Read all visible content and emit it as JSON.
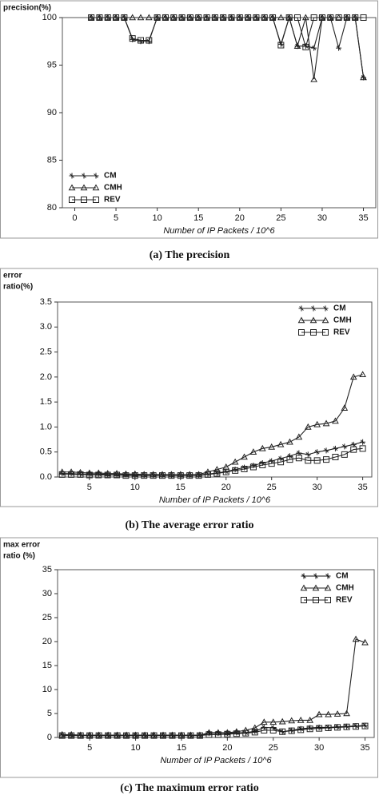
{
  "chart_data": [
    {
      "type": "line",
      "caption": "(a) The precision",
      "ylabel": [
        "precision(%)"
      ],
      "xlabel": "Number of IP Packets / 10^6",
      "x": [
        2,
        3,
        4,
        5,
        6,
        7,
        8,
        9,
        10,
        11,
        12,
        13,
        14,
        15,
        16,
        17,
        18,
        19,
        20,
        21,
        22,
        23,
        24,
        25,
        26,
        27,
        28,
        29,
        30,
        31,
        32,
        33,
        34,
        35
      ],
      "series": [
        {
          "name": "CM",
          "color": "#222",
          "values": [
            100,
            100,
            100,
            100,
            100,
            97.7,
            97.5,
            97.5,
            100,
            100,
            100,
            100,
            100,
            100,
            100,
            100,
            100,
            100,
            100,
            100,
            100,
            100,
            100,
            97.2,
            100,
            97,
            97,
            96.8,
            100,
            100,
            96.8,
            100,
            100,
            93.7
          ]
        },
        {
          "name": "CMH",
          "color": "#222",
          "values": [
            100,
            100,
            100,
            100,
            100,
            100,
            100,
            100,
            100,
            100,
            100,
            100,
            100,
            100,
            100,
            100,
            100,
            100,
            100,
            100,
            100,
            100,
            100,
            100,
            100,
            97,
            100,
            93.5,
            100,
            100,
            100,
            100,
            100,
            93.7
          ]
        },
        {
          "name": "REV",
          "color": "#222",
          "values": [
            100,
            100,
            100,
            100,
            100,
            97.8,
            97.6,
            97.6,
            100,
            100,
            100,
            100,
            100,
            100,
            100,
            100,
            100,
            100,
            100,
            100,
            100,
            100,
            100,
            97.1,
            100,
            100,
            96.9,
            100,
            100,
            100,
            100,
            100,
            100,
            100
          ]
        }
      ],
      "xlim": [
        -1.5,
        36.5
      ],
      "xticks": [
        0,
        5,
        10,
        15,
        20,
        25,
        30,
        35
      ],
      "ylim": [
        80,
        100
      ],
      "yticks": [
        80,
        85,
        90,
        95,
        100
      ],
      "legend": "lower left"
    },
    {
      "type": "line",
      "caption": "(b) The average error ratio",
      "ylabel": [
        "error",
        "ratio(%)"
      ],
      "xlabel": "Number of IP Packets / 10^6",
      "x": [
        2,
        3,
        4,
        5,
        6,
        7,
        8,
        9,
        10,
        11,
        12,
        13,
        14,
        15,
        16,
        17,
        18,
        19,
        20,
        21,
        22,
        23,
        24,
        25,
        26,
        27,
        28,
        29,
        30,
        31,
        32,
        33,
        34,
        35
      ],
      "series": [
        {
          "name": "CM",
          "color": "#222",
          "values": [
            0.07,
            0.07,
            0.06,
            0.06,
            0.06,
            0.05,
            0.05,
            0.05,
            0.04,
            0.04,
            0.04,
            0.04,
            0.03,
            0.03,
            0.03,
            0.04,
            0.06,
            0.08,
            0.11,
            0.15,
            0.19,
            0.23,
            0.28,
            0.32,
            0.37,
            0.42,
            0.48,
            0.45,
            0.5,
            0.53,
            0.57,
            0.61,
            0.65,
            0.7
          ]
        },
        {
          "name": "CMH",
          "color": "#222",
          "values": [
            0.1,
            0.1,
            0.09,
            0.08,
            0.08,
            0.07,
            0.07,
            0.06,
            0.06,
            0.05,
            0.05,
            0.05,
            0.05,
            0.05,
            0.05,
            0.05,
            0.1,
            0.15,
            0.2,
            0.3,
            0.4,
            0.5,
            0.57,
            0.6,
            0.65,
            0.7,
            0.8,
            1.0,
            1.05,
            1.07,
            1.12,
            1.38,
            2.0,
            2.05
          ]
        },
        {
          "name": "REV",
          "color": "#222",
          "values": [
            0.05,
            0.05,
            0.05,
            0.04,
            0.04,
            0.04,
            0.04,
            0.03,
            0.03,
            0.03,
            0.03,
            0.03,
            0.03,
            0.03,
            0.03,
            0.03,
            0.05,
            0.07,
            0.1,
            0.13,
            0.16,
            0.2,
            0.24,
            0.27,
            0.3,
            0.35,
            0.38,
            0.33,
            0.33,
            0.35,
            0.4,
            0.45,
            0.55,
            0.57
          ]
        }
      ],
      "xlim": [
        1.5,
        36
      ],
      "xticks": [
        5,
        10,
        15,
        20,
        25,
        30,
        35
      ],
      "ylim": [
        0,
        3.5
      ],
      "yticks": [
        {
          "value": 0,
          "label": "0.0"
        },
        0.5,
        {
          "value": 1,
          "label": "1.0"
        },
        1.5,
        {
          "value": 2,
          "label": "2.0"
        },
        2.5,
        {
          "value": 3,
          "label": "3.0"
        },
        3.5
      ],
      "legend": "upper right"
    },
    {
      "type": "line",
      "caption": "(c) The maximum error ratio",
      "ylabel": [
        "max error",
        "ratio   (%)"
      ],
      "xlabel": "Number of IP Packets / 10^6",
      "x": [
        2,
        3,
        4,
        5,
        6,
        7,
        8,
        9,
        10,
        11,
        12,
        13,
        14,
        15,
        16,
        17,
        18,
        19,
        20,
        21,
        22,
        23,
        24,
        25,
        26,
        27,
        28,
        29,
        30,
        31,
        32,
        33,
        34,
        35
      ],
      "series": [
        {
          "name": "CM",
          "color": "#111",
          "values": [
            0.5,
            0.5,
            0.5,
            0.4,
            0.4,
            0.4,
            0.4,
            0.4,
            0.4,
            0.4,
            0.4,
            0.4,
            0.4,
            0.4,
            0.4,
            0.4,
            0.9,
            0.9,
            0.9,
            1,
            1,
            1.3,
            2.1,
            2,
            1.2,
            1.5,
            1.8,
            2,
            2.1,
            2.1,
            2.2,
            2.3,
            2.4,
            2.5
          ]
        },
        {
          "name": "CMH",
          "color": "#222",
          "values": [
            0.6,
            0.6,
            0.5,
            0.5,
            0.5,
            0.5,
            0.5,
            0.5,
            0.5,
            0.5,
            0.5,
            0.5,
            0.5,
            0.5,
            0.5,
            0.5,
            1,
            1,
            1,
            1.2,
            1.5,
            2,
            3.2,
            3.2,
            3.3,
            3.5,
            3.6,
            3.6,
            4.8,
            4.8,
            4.9,
            5,
            20.5,
            19.8
          ]
        },
        {
          "name": "REV",
          "color": "#222",
          "values": [
            0.4,
            0.4,
            0.4,
            0.4,
            0.4,
            0.4,
            0.4,
            0.4,
            0.4,
            0.4,
            0.4,
            0.4,
            0.4,
            0.4,
            0.4,
            0.4,
            0.6,
            0.6,
            0.7,
            0.8,
            0.9,
            1.1,
            1.5,
            1.5,
            1.2,
            1.4,
            1.6,
            1.8,
            1.9,
            2,
            2.1,
            2.2,
            2.3,
            2.4
          ]
        }
      ],
      "xlim": [
        1.5,
        36
      ],
      "xticks": [
        5,
        10,
        15,
        20,
        25,
        30,
        35
      ],
      "ylim": [
        0,
        35
      ],
      "yticks": [
        0,
        5,
        10,
        15,
        20,
        25,
        30,
        35
      ],
      "legend": "upper right"
    }
  ]
}
